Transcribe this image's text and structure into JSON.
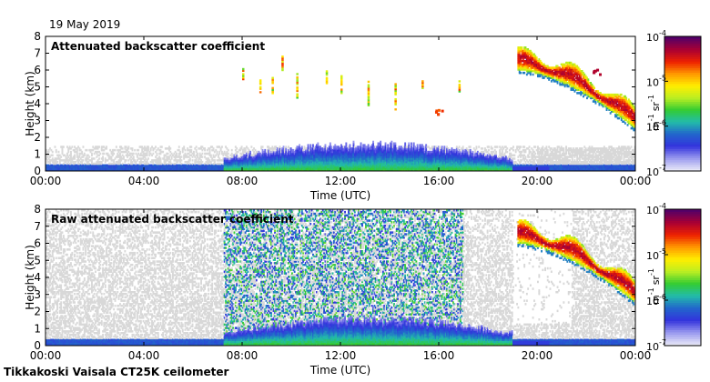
{
  "header": {
    "date": "19 May 2019",
    "footer": "Tikkakoski Vaisala CT25K ceilometer"
  },
  "colors": {
    "background": "#ffffff",
    "no_signal": "#d8d8d8",
    "colormap": [
      "#e8e8f8",
      "#9999ee",
      "#3333dd",
      "#2266cc",
      "#22bbaa",
      "#33cc33",
      "#bbee22",
      "#ffee00",
      "#ff9900",
      "#ee2200",
      "#aa0033",
      "#550066"
    ]
  },
  "chart_data": [
    {
      "type": "heatmap",
      "title": "Attenuated backscatter coefficient",
      "xlabel": "Time (UTC)",
      "ylabel": "Height (km)",
      "xlim": [
        0,
        24
      ],
      "ylim": [
        0,
        8
      ],
      "x_ticks": [
        0,
        4,
        8,
        12,
        16,
        20,
        24
      ],
      "x_tick_labels": [
        "00:00",
        "04:00",
        "08:00",
        "12:00",
        "16:00",
        "20:00",
        "00:00"
      ],
      "y_ticks": [
        0,
        1,
        2,
        3,
        4,
        5,
        6,
        7,
        8
      ],
      "y_tick_labels": [
        "0",
        "1",
        "2",
        "3",
        "4",
        "5",
        "6",
        "7",
        "8"
      ],
      "colorbar": {
        "label": "m-1 sr-1",
        "scale": "log",
        "range": [
          1e-07,
          0.0001
        ],
        "tick_values": [
          1e-07,
          1e-06,
          1e-05,
          0.0001
        ],
        "tick_labels": [
          [
            "10",
            "-7"
          ],
          [
            "10",
            "-6"
          ],
          [
            "10",
            "-5"
          ],
          [
            "10",
            "-4"
          ]
        ]
      },
      "features": [
        {
          "name": "boundary layer",
          "t_start": 7.2,
          "t_end": 19.0,
          "top_km_peak": 1.6,
          "log_value": -6.0
        },
        {
          "name": "cloud layer",
          "t_start": 19.2,
          "t_end": 24.0,
          "base_km_start": 6.0,
          "base_km_end": 2.5,
          "log_value": -4.8
        },
        {
          "name": "cloud patch",
          "t": 16.0,
          "height_km": 3.6,
          "log_value": -4.7
        },
        {
          "name": "dense cloud",
          "t": 22.4,
          "height_km": 6.0,
          "log_value": -4.4
        }
      ]
    },
    {
      "type": "heatmap",
      "title": "Raw attenuated backscatter coefficient",
      "xlabel": "Time (UTC)",
      "ylabel": "Height (km)",
      "xlim": [
        0,
        24
      ],
      "ylim": [
        0,
        8
      ],
      "x_ticks": [
        0,
        4,
        8,
        12,
        16,
        20,
        24
      ],
      "x_tick_labels": [
        "00:00",
        "04:00",
        "08:00",
        "12:00",
        "16:00",
        "20:00",
        "00:00"
      ],
      "y_ticks": [
        0,
        1,
        2,
        3,
        4,
        5,
        6,
        7,
        8
      ],
      "y_tick_labels": [
        "0",
        "1",
        "2",
        "3",
        "4",
        "5",
        "6",
        "7",
        "8"
      ],
      "colorbar": {
        "label": "m-1 sr-1",
        "scale": "log",
        "range": [
          1e-07,
          0.0001
        ],
        "tick_values": [
          1e-07,
          1e-06,
          1e-05,
          0.0001
        ],
        "tick_labels": [
          [
            "10",
            "-7"
          ],
          [
            "10",
            "-6"
          ],
          [
            "10",
            "-5"
          ],
          [
            "10",
            "-4"
          ]
        ]
      },
      "features": [
        {
          "name": "noise columns",
          "t_start": 7.2,
          "t_end": 17.0
        },
        {
          "name": "boundary layer",
          "t_start": 7.2,
          "t_end": 19.0,
          "top_km_peak": 1.6,
          "log_value": -6.0
        },
        {
          "name": "cloud layer",
          "t_start": 19.2,
          "t_end": 24.0,
          "base_km_start": 6.0,
          "base_km_end": 2.5,
          "log_value": -4.8
        }
      ]
    }
  ]
}
